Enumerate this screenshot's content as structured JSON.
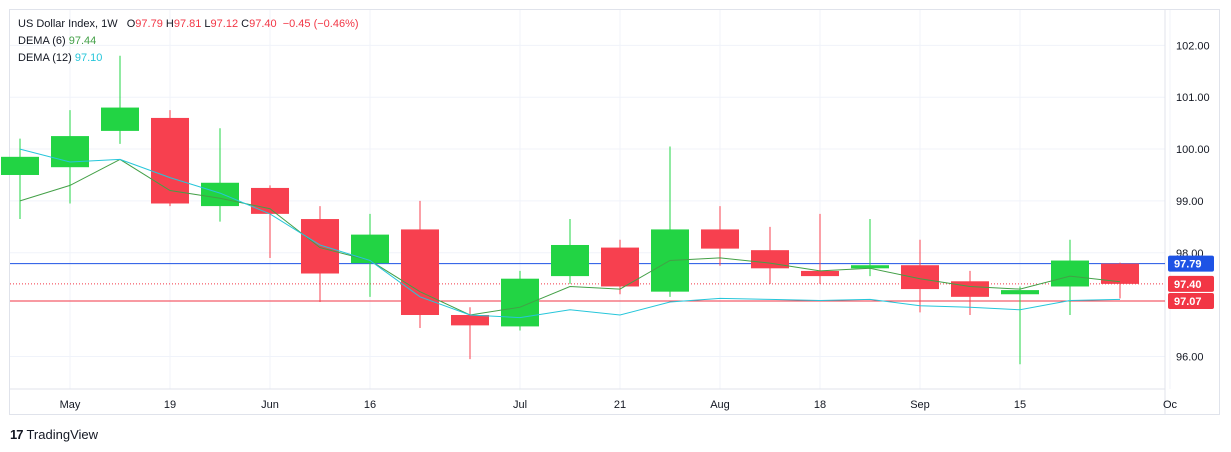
{
  "legend": {
    "symbol": "US Dollar Index, 1W",
    "open_label": "O",
    "open": "97.79",
    "high_label": "H",
    "high": "97.81",
    "low_label": "L",
    "low": "97.12",
    "close_label": "C",
    "close": "97.40",
    "change": "−0.45 (−0.46%)",
    "dema6_label": "DEMA (6)",
    "dema6_value": "97.44",
    "dema12_label": "DEMA (12)",
    "dema12_value": "97.10"
  },
  "footer": {
    "brand": "TradingView",
    "logo": "17"
  },
  "colors": {
    "up": "#22d444",
    "down": "#f7404f",
    "dema6": "#43a047",
    "dema12": "#26c6da",
    "price_line": "#1e53e5",
    "dema6_price": "#f23645"
  },
  "chart_data": {
    "type": "candlestick",
    "ylim": [
      95.45,
      102.45
    ],
    "y_ticks": [
      "102.00",
      "101.00",
      "100.00",
      "99.00",
      "98.00",
      "96.00"
    ],
    "x_ticks": [
      {
        "label": "May",
        "index": 1
      },
      {
        "label": "19",
        "index": 3
      },
      {
        "label": "Jun",
        "index": 5
      },
      {
        "label": "16",
        "index": 7
      },
      {
        "label": "Jul",
        "index": 10
      },
      {
        "label": "21",
        "index": 12
      },
      {
        "label": "Aug",
        "index": 14
      },
      {
        "label": "18",
        "index": 16
      },
      {
        "label": "Sep",
        "index": 18
      },
      {
        "label": "15",
        "index": 20
      },
      {
        "label": "Oc",
        "index": 23
      }
    ],
    "candles": [
      {
        "o": 99.5,
        "h": 100.2,
        "l": 98.65,
        "c": 99.85
      },
      {
        "o": 99.65,
        "h": 100.75,
        "l": 98.95,
        "c": 100.25
      },
      {
        "o": 100.35,
        "h": 101.8,
        "l": 100.1,
        "c": 100.8
      },
      {
        "o": 100.6,
        "h": 100.75,
        "l": 98.9,
        "c": 98.95
      },
      {
        "o": 98.9,
        "h": 100.4,
        "l": 98.6,
        "c": 99.35
      },
      {
        "o": 99.25,
        "h": 99.3,
        "l": 97.9,
        "c": 98.75
      },
      {
        "o": 98.65,
        "h": 98.9,
        "l": 97.05,
        "c": 97.6
      },
      {
        "o": 97.8,
        "h": 98.75,
        "l": 97.15,
        "c": 98.35
      },
      {
        "o": 98.45,
        "h": 99.0,
        "l": 96.55,
        "c": 96.8
      },
      {
        "o": 96.8,
        "h": 96.95,
        "l": 95.95,
        "c": 96.6
      },
      {
        "o": 96.58,
        "h": 97.65,
        "l": 96.5,
        "c": 97.5
      },
      {
        "o": 97.55,
        "h": 98.65,
        "l": 97.4,
        "c": 98.15
      },
      {
        "o": 98.1,
        "h": 98.25,
        "l": 97.2,
        "c": 97.35
      },
      {
        "o": 97.25,
        "h": 100.05,
        "l": 97.15,
        "c": 98.45
      },
      {
        "o": 98.45,
        "h": 98.9,
        "l": 97.75,
        "c": 98.08
      },
      {
        "o": 98.05,
        "h": 98.5,
        "l": 97.4,
        "c": 97.7
      },
      {
        "o": 97.65,
        "h": 98.75,
        "l": 97.4,
        "c": 97.55
      },
      {
        "o": 97.7,
        "h": 98.65,
        "l": 97.55,
        "c": 97.76
      },
      {
        "o": 97.76,
        "h": 98.25,
        "l": 96.85,
        "c": 97.3
      },
      {
        "o": 97.45,
        "h": 97.65,
        "l": 96.8,
        "c": 97.15
      },
      {
        "o": 97.2,
        "h": 97.35,
        "l": 95.85,
        "c": 97.28
      },
      {
        "o": 97.35,
        "h": 98.25,
        "l": 96.8,
        "c": 97.85
      },
      {
        "o": 97.79,
        "h": 97.81,
        "l": 97.12,
        "c": 97.4
      }
    ],
    "series": [
      {
        "name": "DEMA (6)",
        "values": [
          99.0,
          99.3,
          99.8,
          99.2,
          99.05,
          98.85,
          98.1,
          97.85,
          97.25,
          96.8,
          96.95,
          97.35,
          97.3,
          97.85,
          97.9,
          97.8,
          97.65,
          97.7,
          97.5,
          97.35,
          97.3,
          97.55,
          97.44
        ]
      },
      {
        "name": "DEMA (12)",
        "values": [
          100.0,
          99.75,
          99.8,
          99.45,
          99.15,
          98.75,
          98.15,
          97.85,
          97.15,
          96.8,
          96.75,
          96.9,
          96.8,
          97.05,
          97.12,
          97.1,
          97.08,
          97.1,
          96.98,
          96.95,
          96.9,
          97.08,
          97.1
        ]
      }
    ],
    "price_markers": [
      {
        "label": "97.79",
        "value": 97.79,
        "color": "#1e53e5",
        "line": "solid"
      },
      {
        "label": "97.40",
        "value": 97.4,
        "color": "#f23645",
        "line": "dotted"
      },
      {
        "label": "97.07",
        "value": 97.07,
        "color": "#f23645",
        "line": "solid"
      }
    ]
  }
}
